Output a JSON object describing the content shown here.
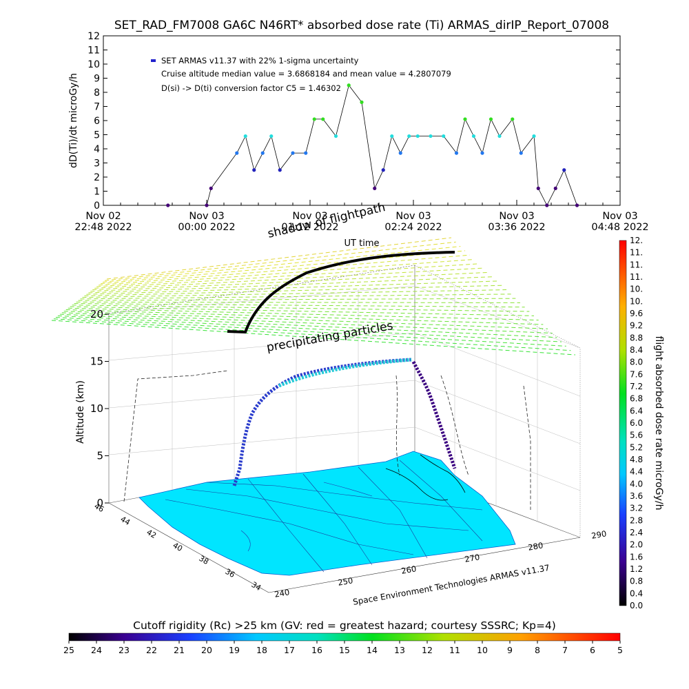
{
  "header": {
    "title": "SET_RAD_FM7008  GA6C N46RT* absorbed dose rate (Ti) ARMAS_dirIP_Report_07008"
  },
  "timeseries": {
    "ylabel": "dD(Ti)/dt microGy/h",
    "y_ticks": [
      "0",
      "1",
      "2",
      "3",
      "4",
      "5",
      "6",
      "7",
      "8",
      "9",
      "10",
      "11",
      "12"
    ],
    "x_tick_labels": [
      {
        "line1": "Nov 02",
        "line2": "22:48 2022"
      },
      {
        "line1": "Nov 03",
        "line2": "00:00 2022"
      },
      {
        "line1": "Nov 03",
        "line2": "01:12 2022"
      },
      {
        "line1": "Nov 03",
        "line2": "02:24 2022"
      },
      {
        "line1": "Nov 03",
        "line2": "03:36 2022"
      },
      {
        "line1": "Nov 03",
        "line2": "04:48 2022"
      }
    ],
    "xlabel": "UT time",
    "legend": {
      "line1": "SET ARMAS v11.37 with 22% 1-sigma uncertainty",
      "line2": "Cruise altitude median value = 3.6868184 and mean value = 4.2807079",
      "line3": "D(si) -> D(ti) conversion factor C5 = 1.46302"
    },
    "colors": {
      "high": "#33dd22",
      "mid": "#22dddd",
      "low": "#2277ee",
      "lower": "#2222bb",
      "min": "#440077"
    }
  },
  "chart_data": {
    "type": "scatter",
    "title": "SET_RAD_FM7008  GA6C N46RT* absorbed dose rate (Ti) ARMAS_dirIP_Report_07008",
    "ylabel": "dD(Ti)/dt microGy/h",
    "xlabel": "UT time",
    "x_unit": "hours since Nov 02 22:48 2022",
    "ylim": [
      0,
      12
    ],
    "xlim": [
      0,
      6
    ],
    "series": [
      {
        "name": "SET ARMAS v11.37 with 22% 1-sigma uncertainty",
        "x": [
          0.75,
          1.2,
          1.25,
          1.55,
          1.65,
          1.75,
          1.85,
          1.95,
          2.05,
          2.2,
          2.35,
          2.45,
          2.55,
          2.7,
          2.85,
          3.0,
          3.15,
          3.25,
          3.35,
          3.45,
          3.55,
          3.65,
          3.8,
          3.95,
          4.1,
          4.2,
          4.3,
          4.4,
          4.5,
          4.6,
          4.75,
          4.85,
          5.0,
          5.05,
          5.15,
          5.25,
          5.35,
          5.5
        ],
        "y": [
          0,
          0,
          1.2,
          3.7,
          4.9,
          2.5,
          3.7,
          4.9,
          2.5,
          3.7,
          3.7,
          6.1,
          6.1,
          4.9,
          8.5,
          7.3,
          1.2,
          2.5,
          4.9,
          3.7,
          4.9,
          4.9,
          4.9,
          4.9,
          3.7,
          6.1,
          4.9,
          3.7,
          6.1,
          4.9,
          6.1,
          3.7,
          4.9,
          1.2,
          0,
          1.2,
          2.5,
          0
        ]
      }
    ]
  },
  "map3d": {
    "zlabel": "Altitude (km)",
    "z_ticks": [
      "0",
      "5",
      "10",
      "15",
      "20"
    ],
    "lat_ticks": [
      "46",
      "44",
      "42",
      "40",
      "38",
      "36",
      "34"
    ],
    "lon_ticks": [
      "240",
      "250",
      "260",
      "270",
      "280",
      "290"
    ],
    "labels": {
      "shadow": "shadow of flightpath",
      "precip": "precipitating particles",
      "credit": "Space Environment Technologies ARMAS v11.37"
    }
  },
  "colorbar_right": {
    "label": "flight absorbed dose rate microGy/h",
    "ticks": [
      "0.0",
      "0.4",
      "0.8",
      "1.2",
      "1.6",
      "2.0",
      "2.4",
      "2.8",
      "3.2",
      "3.6",
      "4.0",
      "4.4",
      "4.8",
      "5.2",
      "5.6",
      "6.0",
      "6.4",
      "6.8",
      "7.2",
      "7.6",
      "8.0",
      "8.4",
      "8.8",
      "9.2",
      "9.6",
      "10.",
      "10.",
      "11.",
      "11.",
      "11.",
      "12."
    ]
  },
  "colorbar_bottom": {
    "title": "Cutoff rigidity (Rc) >25 km (GV: red = greatest hazard; courtesy SSSRC; Kp=4)",
    "ticks": [
      "25",
      "24",
      "23",
      "22",
      "21",
      "20",
      "19",
      "18",
      "17",
      "16",
      "15",
      "14",
      "13",
      "12",
      "11",
      "10",
      "9",
      "8",
      "7",
      "6",
      "5"
    ]
  }
}
